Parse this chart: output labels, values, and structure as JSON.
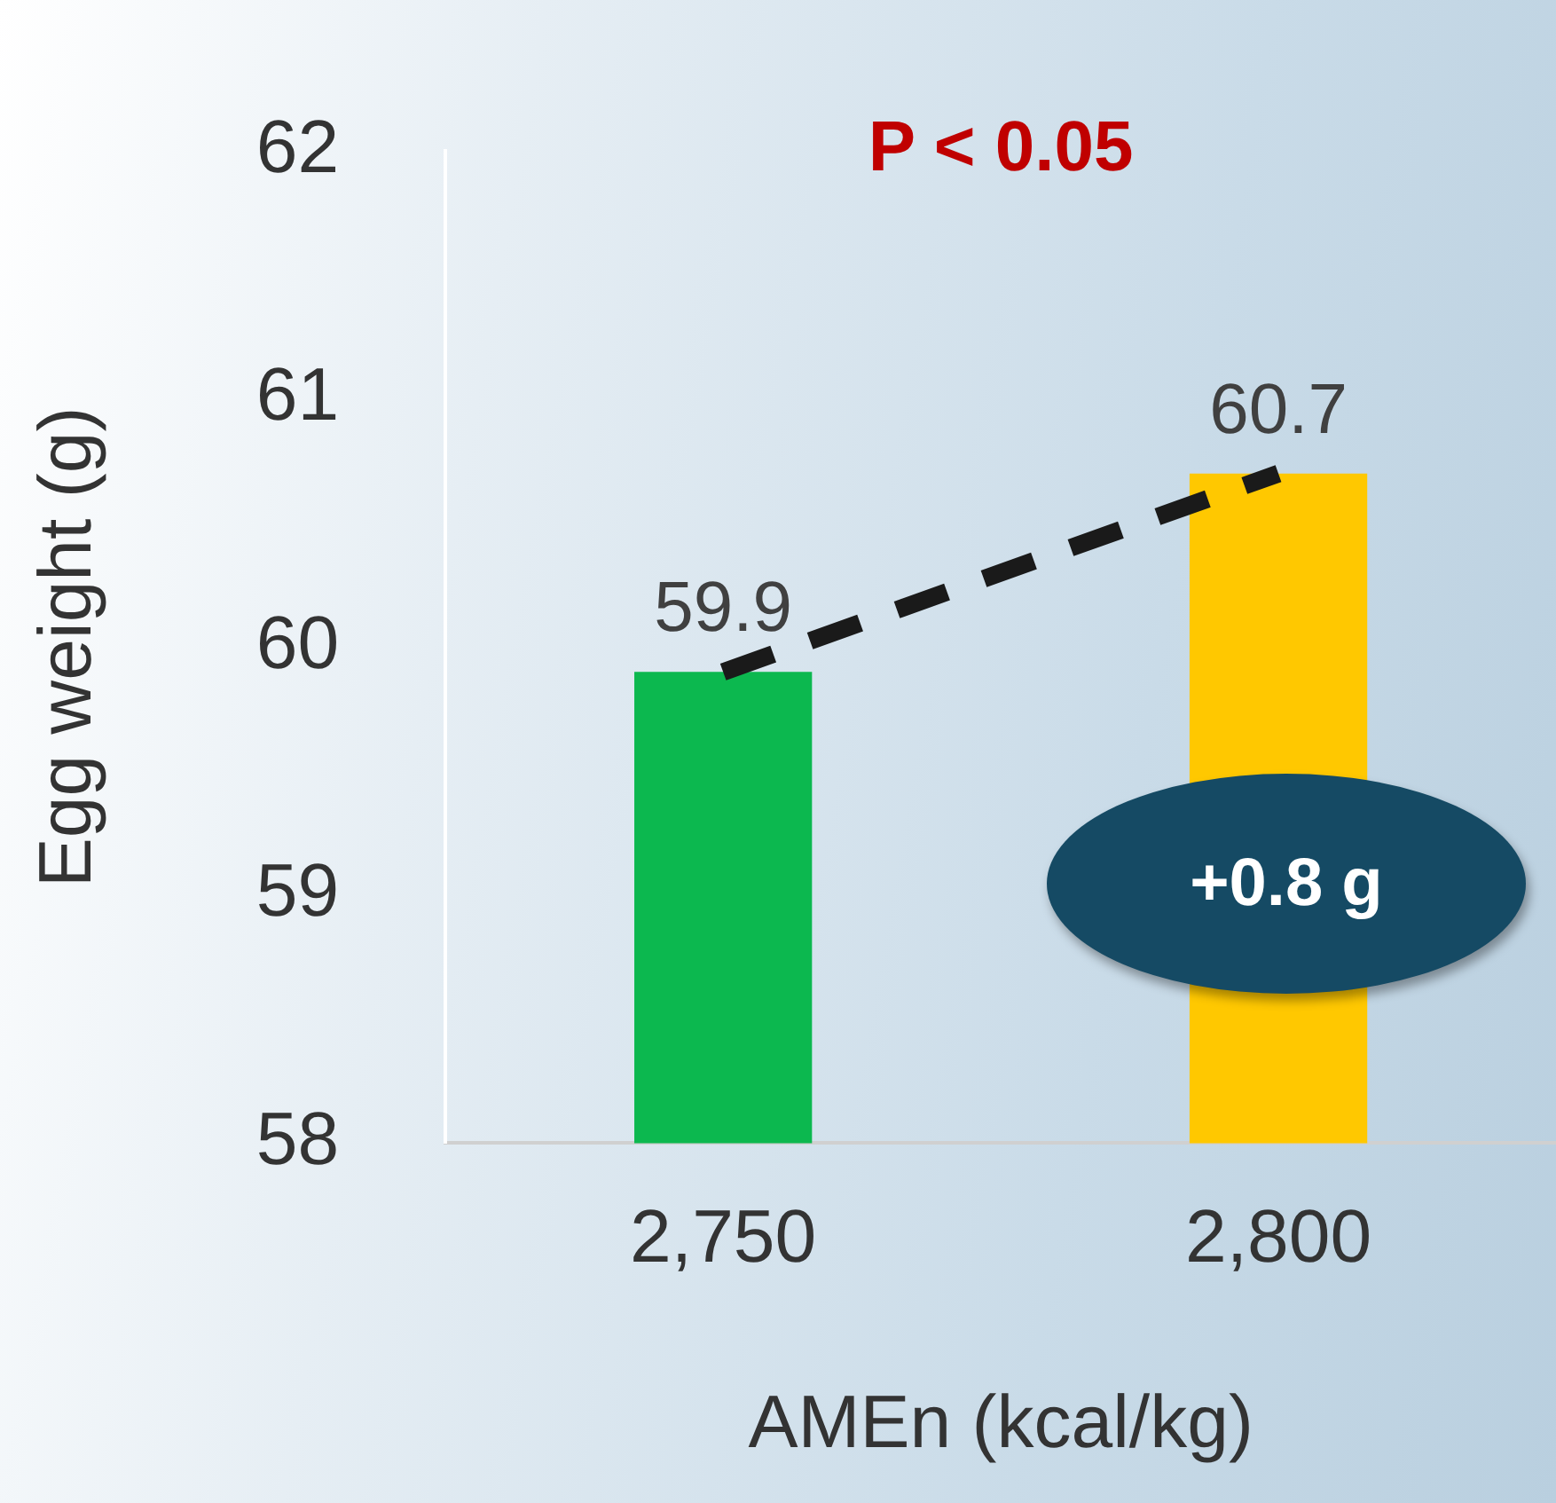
{
  "chart_data": {
    "type": "bar",
    "title": "P < 0.05",
    "xlabel": "AMEn (kcal/kg)",
    "ylabel": "Egg weight (g)",
    "categories": [
      "2,750",
      "2,800"
    ],
    "series": [
      {
        "values": [
          59.9,
          60.7
        ],
        "value_labels": [
          "59.9",
          "60.7"
        ],
        "colors": [
          "#0cb84f",
          "#ffc800"
        ]
      },
      {
        "type": "line",
        "x": [
          "2,750",
          "2,800"
        ],
        "values": [
          59.9,
          60.7
        ],
        "color": "#1a1a1a",
        "line_style": "dashed",
        "marker": "none"
      }
    ],
    "ylim": [
      58,
      62
    ],
    "yticks": [
      58,
      59,
      60,
      61,
      62
    ],
    "annotations": [
      "+0.8 g"
    ]
  }
}
